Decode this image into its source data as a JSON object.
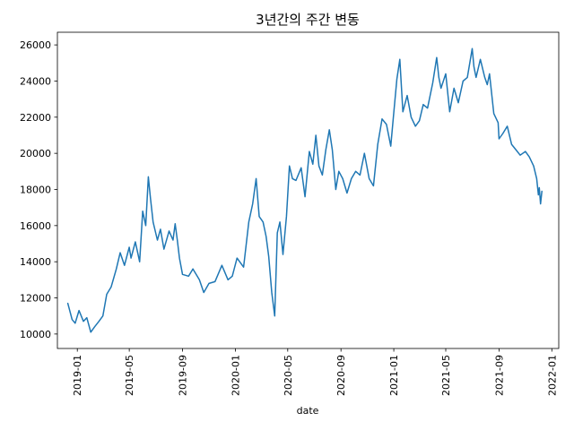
{
  "chart_data": {
    "type": "line",
    "title": "3년간의 주간 변동",
    "xlabel": "date",
    "ylabel": "",
    "ylim": [
      9200,
      26700
    ],
    "xlim": [
      "2018-11-16",
      "2022-01-17"
    ],
    "y_ticks": [
      10000,
      12000,
      14000,
      16000,
      18000,
      20000,
      22000,
      24000,
      26000
    ],
    "y_tick_labels": [
      "10000",
      "12000",
      "14000",
      "16000",
      "18000",
      "20000",
      "22000",
      "24000",
      "26000"
    ],
    "x_ticks": [
      "2019-01-01",
      "2019-05-01",
      "2019-09-01",
      "2020-01-01",
      "2020-05-01",
      "2020-09-01",
      "2021-01-01",
      "2021-05-01",
      "2021-09-01",
      "2022-01-01"
    ],
    "x_tick_labels": [
      "2019-01",
      "2019-05",
      "2019-09",
      "2020-01",
      "2020-05",
      "2020-09",
      "2021-01",
      "2021-05",
      "2021-09",
      "2022-01"
    ],
    "grid": false,
    "series": [
      {
        "color": "#1f77b4",
        "x": [
          "2018-12-10",
          "2018-12-20",
          "2018-12-27",
          "2019-01-05",
          "2019-01-15",
          "2019-01-23",
          "2019-02-01",
          "2019-02-10",
          "2019-02-20",
          "2019-03-01",
          "2019-03-10",
          "2019-03-20",
          "2019-04-01",
          "2019-04-10",
          "2019-04-20",
          "2019-05-01",
          "2019-05-05",
          "2019-05-15",
          "2019-05-25",
          "2019-06-01",
          "2019-06-08",
          "2019-06-14",
          "2019-06-19",
          "2019-06-25",
          "2019-07-05",
          "2019-07-12",
          "2019-07-20",
          "2019-08-01",
          "2019-08-10",
          "2019-08-15",
          "2019-08-20",
          "2019-08-25",
          "2019-09-01",
          "2019-09-15",
          "2019-09-25",
          "2019-10-10",
          "2019-10-20",
          "2019-11-01",
          "2019-11-15",
          "2019-12-01",
          "2019-12-15",
          "2019-12-25",
          "2020-01-05",
          "2020-01-20",
          "2020-02-01",
          "2020-02-10",
          "2020-02-18",
          "2020-02-25",
          "2020-03-05",
          "2020-03-12",
          "2020-03-18",
          "2020-03-25",
          "2020-04-01",
          "2020-04-07",
          "2020-04-13",
          "2020-04-20",
          "2020-04-28",
          "2020-05-05",
          "2020-05-12",
          "2020-05-20",
          "2020-06-01",
          "2020-06-10",
          "2020-06-20",
          "2020-06-28",
          "2020-07-05",
          "2020-07-12",
          "2020-07-20",
          "2020-07-28",
          "2020-08-05",
          "2020-08-12",
          "2020-08-20",
          "2020-08-27",
          "2020-09-05",
          "2020-09-15",
          "2020-09-25",
          "2020-10-05",
          "2020-10-15",
          "2020-10-25",
          "2020-11-05",
          "2020-11-15",
          "2020-11-25",
          "2020-12-05",
          "2020-12-15",
          "2020-12-25",
          "2020-12-31",
          "2021-01-08",
          "2021-01-15",
          "2021-01-22",
          "2021-02-01",
          "2021-02-10",
          "2021-02-20",
          "2021-03-01",
          "2021-03-10",
          "2021-03-20",
          "2021-04-01",
          "2021-04-10",
          "2021-04-15",
          "2021-04-20",
          "2021-05-01",
          "2021-05-10",
          "2021-05-20",
          "2021-05-30",
          "2021-06-10",
          "2021-06-20",
          "2021-07-01",
          "2021-07-05",
          "2021-07-10",
          "2021-07-20",
          "2021-07-30",
          "2021-08-05",
          "2021-08-10",
          "2021-08-20",
          "2021-08-30",
          "2021-09-01",
          "2021-09-10",
          "2021-09-20",
          "2021-09-30",
          "2021-10-10",
          "2021-10-20",
          "2021-11-01",
          "2021-11-10",
          "2021-11-20",
          "2021-11-27",
          "2021-12-01",
          "2021-12-03",
          "2021-12-06",
          "2021-12-09"
        ],
        "y": [
          11700,
          10800,
          10600,
          11300,
          10700,
          10900,
          10100,
          10400,
          10700,
          11000,
          12200,
          12600,
          13600,
          14500,
          13800,
          14800,
          14200,
          15100,
          14000,
          16800,
          16000,
          18700,
          17500,
          16200,
          15200,
          15800,
          14700,
          15700,
          15200,
          16100,
          15200,
          14200,
          13300,
          13200,
          13600,
          13000,
          12300,
          12800,
          12900,
          13800,
          13000,
          13200,
          14200,
          13700,
          16200,
          17200,
          18600,
          16500,
          16200,
          15400,
          14300,
          12300,
          11000,
          15600,
          16200,
          14400,
          16500,
          19300,
          18600,
          18500,
          19200,
          17600,
          20100,
          19400,
          21000,
          19300,
          18800,
          20200,
          21300,
          20200,
          18000,
          19000,
          18600,
          17800,
          18600,
          19000,
          18800,
          20000,
          18600,
          18200,
          20500,
          21900,
          21600,
          20400,
          22000,
          24100,
          25200,
          22300,
          23200,
          22000,
          21500,
          21800,
          22700,
          22500,
          23900,
          25300,
          24200,
          23600,
          24400,
          22300,
          23600,
          22800,
          24000,
          24200,
          25800,
          24800,
          24200,
          25200,
          24200,
          23800,
          24400,
          22200,
          21700,
          20800,
          21100,
          21500,
          20500,
          20200,
          19900,
          20100,
          19800,
          19300,
          18600,
          17700,
          18100,
          17200,
          17900
        ]
      }
    ]
  }
}
